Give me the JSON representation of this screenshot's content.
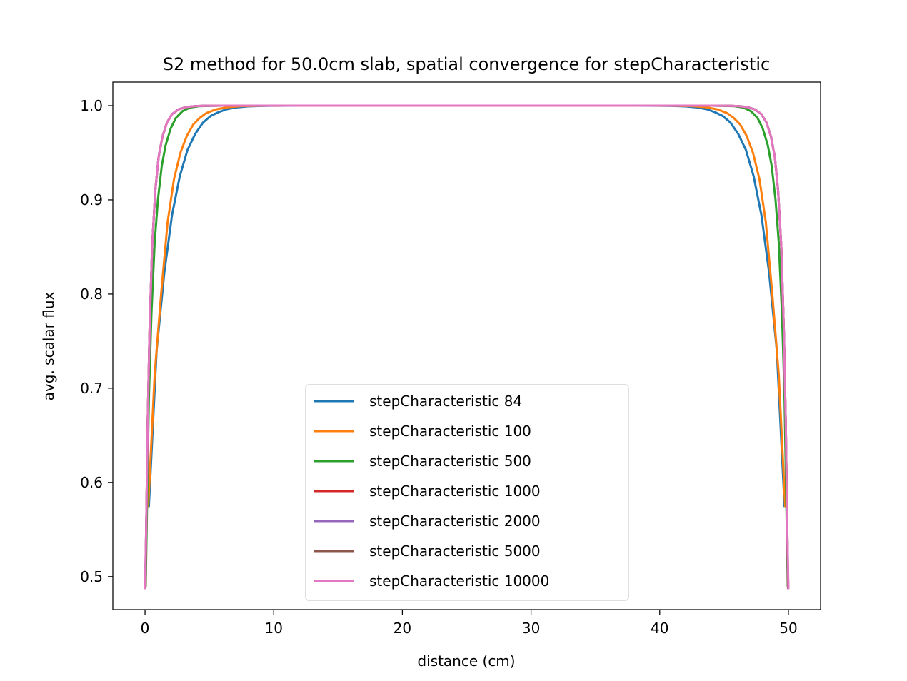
{
  "chart_data": {
    "type": "line",
    "title": "S2 method for 50.0cm slab, spatial convergence for stepCharacteristic",
    "xlabel": "distance (cm)",
    "ylabel": "avg. scalar flux",
    "xlim": [
      -2.5,
      52.5
    ],
    "ylim": [
      0.465,
      1.025
    ],
    "xticks": [
      0,
      10,
      20,
      30,
      40,
      50
    ],
    "yticks": [
      0.5,
      0.6,
      0.7,
      0.8,
      0.9,
      1.0
    ],
    "ytick_labels": [
      "0.5",
      "0.6",
      "0.7",
      "0.8",
      "0.9",
      "1.0"
    ],
    "legend_position": "lower center",
    "grid": false,
    "series": [
      {
        "name": "stepCharacteristic 84",
        "color": "#1f77b4",
        "x": [
          0.3,
          0.9,
          1.5,
          2.1,
          2.7,
          3.3,
          3.9,
          4.5,
          5.1,
          5.7,
          6.3,
          7.0,
          8.0,
          9.0,
          10.0,
          12.0,
          25.0,
          38.0,
          40.0,
          41.0,
          42.0,
          43.0,
          43.7,
          44.3,
          44.9,
          45.5,
          46.1,
          46.7,
          47.3,
          47.9,
          48.5,
          49.1,
          49.7
        ],
        "y": [
          0.575,
          0.74,
          0.823,
          0.884,
          0.925,
          0.953,
          0.97,
          0.982,
          0.989,
          0.993,
          0.996,
          0.998,
          0.9992,
          0.9997,
          0.9999,
          1.0,
          1.0,
          1.0,
          0.9999,
          0.9997,
          0.9992,
          0.998,
          0.996,
          0.993,
          0.989,
          0.982,
          0.97,
          0.953,
          0.925,
          0.884,
          0.823,
          0.74,
          0.575
        ]
      },
      {
        "name": "stepCharacteristic 100",
        "color": "#ff7f0e",
        "x": [
          0.25,
          0.75,
          1.25,
          1.75,
          2.25,
          2.75,
          3.25,
          3.75,
          4.25,
          4.75,
          5.5,
          6.5,
          7.5,
          9.0,
          11.0,
          25.0,
          39.0,
          41.0,
          42.5,
          43.5,
          44.5,
          45.25,
          45.75,
          46.25,
          46.75,
          47.25,
          47.75,
          48.25,
          48.75,
          49.25,
          49.75
        ],
        "y": [
          0.575,
          0.715,
          0.8,
          0.876,
          0.922,
          0.95,
          0.968,
          0.98,
          0.987,
          0.992,
          0.996,
          0.9985,
          0.9995,
          0.9999,
          1.0,
          1.0,
          1.0,
          0.9999,
          0.9995,
          0.9985,
          0.996,
          0.992,
          0.987,
          0.98,
          0.968,
          0.95,
          0.922,
          0.876,
          0.8,
          0.715,
          0.575
        ]
      },
      {
        "name": "stepCharacteristic 500",
        "color": "#2ca02c",
        "x": [
          0.05,
          0.15,
          0.3,
          0.5,
          0.75,
          1.0,
          1.3,
          1.6,
          2.0,
          2.4,
          2.9,
          3.5,
          4.2,
          5.0,
          6.0,
          8.0,
          25.0,
          42.0,
          44.0,
          45.0,
          45.8,
          46.5,
          47.1,
          47.6,
          48.0,
          48.4,
          48.7,
          49.0,
          49.25,
          49.5,
          49.7,
          49.85,
          49.95
        ],
        "y": [
          0.49,
          0.57,
          0.69,
          0.78,
          0.855,
          0.9,
          0.936,
          0.958,
          0.976,
          0.987,
          0.994,
          0.998,
          0.9994,
          0.9998,
          1.0,
          1.0,
          1.0,
          1.0,
          1.0,
          0.9998,
          0.9994,
          0.998,
          0.994,
          0.987,
          0.976,
          0.958,
          0.936,
          0.9,
          0.855,
          0.78,
          0.69,
          0.57,
          0.49
        ]
      },
      {
        "name": "stepCharacteristic 1000",
        "color": "#d62728",
        "x": [
          0.03,
          0.1,
          0.2,
          0.35,
          0.55,
          0.8,
          1.05,
          1.35,
          1.7,
          2.1,
          2.6,
          3.2,
          3.9,
          4.8,
          6.0,
          8.0,
          25.0,
          42.0,
          44.0,
          45.2,
          46.1,
          46.8,
          47.4,
          47.9,
          48.3,
          48.65,
          48.95,
          49.2,
          49.45,
          49.65,
          49.8,
          49.9,
          49.97
        ],
        "y": [
          0.488,
          0.56,
          0.66,
          0.76,
          0.85,
          0.91,
          0.945,
          0.967,
          0.982,
          0.991,
          0.996,
          0.9985,
          0.9995,
          0.9999,
          1.0,
          1.0,
          1.0,
          1.0,
          1.0,
          0.9999,
          0.9995,
          0.9985,
          0.996,
          0.991,
          0.982,
          0.967,
          0.945,
          0.91,
          0.85,
          0.76,
          0.66,
          0.56,
          0.488
        ]
      },
      {
        "name": "stepCharacteristic 2000",
        "color": "#9467bd",
        "x": [
          0.02,
          0.1,
          0.2,
          0.35,
          0.55,
          0.8,
          1.05,
          1.35,
          1.7,
          2.1,
          2.6,
          3.2,
          3.9,
          4.8,
          6.0,
          8.0,
          25.0,
          42.0,
          44.0,
          45.2,
          46.1,
          46.8,
          47.4,
          47.9,
          48.3,
          48.65,
          48.95,
          49.2,
          49.45,
          49.65,
          49.8,
          49.9,
          49.98
        ],
        "y": [
          0.488,
          0.56,
          0.66,
          0.76,
          0.85,
          0.91,
          0.945,
          0.967,
          0.982,
          0.991,
          0.996,
          0.9985,
          0.9995,
          0.9999,
          1.0,
          1.0,
          1.0,
          1.0,
          1.0,
          0.9999,
          0.9995,
          0.9985,
          0.996,
          0.991,
          0.982,
          0.967,
          0.945,
          0.91,
          0.85,
          0.76,
          0.66,
          0.56,
          0.488
        ]
      },
      {
        "name": "stepCharacteristic 5000",
        "color": "#8c564b",
        "x": [
          0.01,
          0.1,
          0.2,
          0.35,
          0.55,
          0.8,
          1.05,
          1.35,
          1.7,
          2.1,
          2.6,
          3.2,
          3.9,
          4.8,
          6.0,
          8.0,
          25.0,
          42.0,
          44.0,
          45.2,
          46.1,
          46.8,
          47.4,
          47.9,
          48.3,
          48.65,
          48.95,
          49.2,
          49.45,
          49.65,
          49.8,
          49.9,
          49.99
        ],
        "y": [
          0.488,
          0.56,
          0.66,
          0.76,
          0.85,
          0.91,
          0.945,
          0.967,
          0.982,
          0.991,
          0.996,
          0.9985,
          0.9995,
          0.9999,
          1.0,
          1.0,
          1.0,
          1.0,
          1.0,
          0.9999,
          0.9995,
          0.9985,
          0.996,
          0.991,
          0.982,
          0.967,
          0.945,
          0.91,
          0.85,
          0.76,
          0.66,
          0.56,
          0.488
        ]
      },
      {
        "name": "stepCharacteristic 10000",
        "color": "#e377c2",
        "x": [
          0.0,
          0.1,
          0.2,
          0.35,
          0.55,
          0.8,
          1.05,
          1.35,
          1.7,
          2.1,
          2.6,
          3.2,
          3.9,
          4.8,
          6.0,
          8.0,
          25.0,
          42.0,
          44.0,
          45.2,
          46.1,
          46.8,
          47.4,
          47.9,
          48.3,
          48.65,
          48.95,
          49.2,
          49.45,
          49.65,
          49.8,
          49.9,
          50.0
        ],
        "y": [
          0.488,
          0.56,
          0.66,
          0.76,
          0.85,
          0.91,
          0.945,
          0.967,
          0.982,
          0.991,
          0.996,
          0.9985,
          0.9995,
          0.9999,
          1.0,
          1.0,
          1.0,
          1.0,
          1.0,
          0.9999,
          0.9995,
          0.9985,
          0.996,
          0.991,
          0.982,
          0.967,
          0.945,
          0.91,
          0.85,
          0.76,
          0.66,
          0.56,
          0.488
        ]
      }
    ]
  }
}
